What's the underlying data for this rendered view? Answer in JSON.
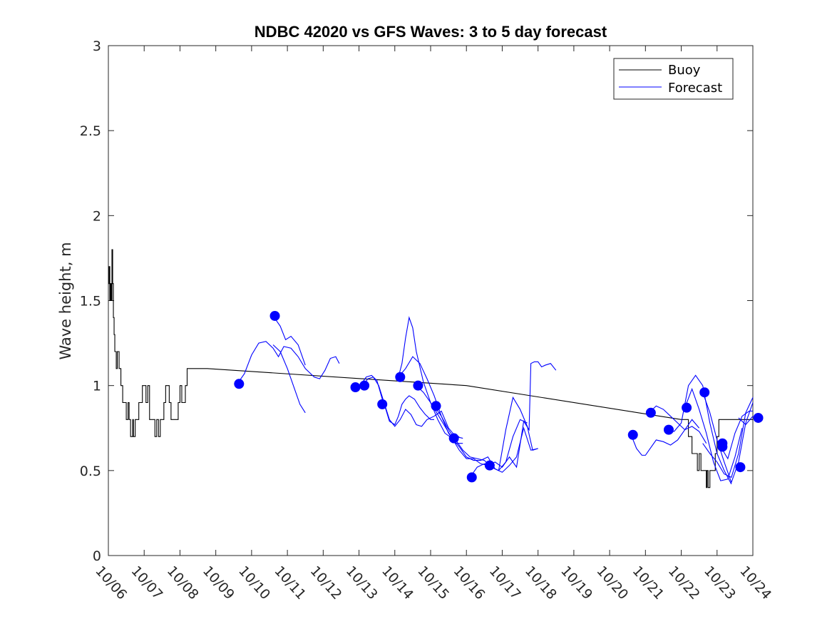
{
  "chart_data": {
    "type": "line",
    "title": "NDBC 42020 vs GFS Waves: 3 to 5 day forecast",
    "xlabel": "",
    "ylabel": "Wave height, m",
    "xlim": [
      0,
      18
    ],
    "ylim": [
      0,
      3
    ],
    "x_ticks": [
      "10/06",
      "10/07",
      "10/08",
      "10/09",
      "10/10",
      "10/11",
      "10/12",
      "10/13",
      "10/14",
      "10/15",
      "10/16",
      "10/17",
      "10/18",
      "10/19",
      "10/20",
      "10/21",
      "10/22",
      "10/23",
      "10/24"
    ],
    "y_ticks": [
      "0",
      "0.5",
      "1",
      "1.5",
      "2",
      "2.5",
      "3"
    ],
    "legend": {
      "position": "top-right",
      "entries": [
        "Buoy",
        "Forecast"
      ]
    },
    "colors": {
      "buoy": "#000000",
      "forecast": "#0000ff"
    },
    "series": [
      {
        "name": "Buoy",
        "x": [
          0,
          0.02,
          0.04,
          0.06,
          0.08,
          0.1,
          0.12,
          0.14,
          0.16,
          0.18,
          0.2,
          0.22,
          0.25,
          0.3,
          0.35,
          0.4,
          0.45,
          0.5,
          0.55,
          0.58,
          0.6,
          0.62,
          0.65,
          0.68,
          0.7,
          0.72,
          0.75,
          0.8,
          0.85,
          0.9,
          0.95,
          1.0,
          1.05,
          1.1,
          1.15,
          1.2,
          1.3,
          1.35,
          1.4,
          1.45,
          1.5,
          1.55,
          1.6,
          1.65,
          1.7,
          1.75,
          1.8,
          1.85,
          1.9,
          1.95,
          2.0,
          2.05,
          2.1,
          2.15,
          2.2,
          2.3,
          2.4,
          2.45,
          2.5,
          2.55,
          2.6,
          2.65,
          2.7,
          2.75,
          2.76,
          10.0,
          16.0,
          16.2,
          16.3,
          16.4,
          16.45,
          16.5,
          16.55,
          16.6,
          16.65,
          16.7,
          16.72,
          16.75,
          16.8,
          16.85,
          16.9,
          16.95,
          17.0,
          17.05,
          17.1,
          17.15,
          17.2,
          17.3,
          17.4,
          17.5,
          17.6,
          17.7,
          17.8,
          17.9,
          18.0
        ],
        "values": [
          1.6,
          1.7,
          1.5,
          1.6,
          1.5,
          1.8,
          1.6,
          1.4,
          1.3,
          1.2,
          1.2,
          1.1,
          1.2,
          1.1,
          1.0,
          0.9,
          0.9,
          0.8,
          0.9,
          0.8,
          0.8,
          0.7,
          0.7,
          0.8,
          0.7,
          0.7,
          0.8,
          0.8,
          0.9,
          0.9,
          1.0,
          1.0,
          0.9,
          1.0,
          0.8,
          0.8,
          0.7,
          0.8,
          0.7,
          0.8,
          0.8,
          0.9,
          1.0,
          1.0,
          0.9,
          0.8,
          0.8,
          0.8,
          0.8,
          0.9,
          1.0,
          0.9,
          0.9,
          1.0,
          1.1,
          1.1,
          1.1,
          1.1,
          1.1,
          1.1,
          1.1,
          1.1,
          1.1,
          1.1,
          1.1,
          1.0,
          0.8,
          0.7,
          0.6,
          0.6,
          0.5,
          0.6,
          0.5,
          0.5,
          0.5,
          0.4,
          0.5,
          0.4,
          0.5,
          0.5,
          0.5,
          0.6,
          0.7,
          0.8,
          0.8,
          0.8,
          0.8,
          0.8,
          0.8,
          0.8,
          0.8,
          0.8,
          0.8,
          0.8,
          0.8
        ]
      },
      {
        "name": "Forecast",
        "lines": [
          {
            "x": [
              3.6,
              3.8,
              4.0,
              4.2,
              4.4,
              4.6,
              4.75,
              4.9,
              5.1,
              5.3,
              5.5,
              5.75,
              5.9,
              6.05,
              6.2,
              6.35,
              6.45
            ],
            "values": [
              1.01,
              1.07,
              1.18,
              1.25,
              1.26,
              1.22,
              1.17,
              1.23,
              1.22,
              1.17,
              1.1,
              1.05,
              1.04,
              1.09,
              1.16,
              1.17,
              1.13
            ]
          },
          {
            "x": [
              4.6,
              4.8,
              4.95,
              5.1,
              5.3,
              5.5
            ],
            "values": [
              1.41,
              1.35,
              1.27,
              1.29,
              1.24,
              1.12
            ]
          },
          {
            "x": [
              4.6,
              4.8,
              5.0,
              5.2,
              5.35,
              5.5
            ],
            "values": [
              1.24,
              1.2,
              1.1,
              0.98,
              0.89,
              0.84
            ]
          },
          {
            "x": [
              6.85,
              7.0,
              7.1,
              7.2,
              7.35,
              7.5,
              7.65,
              7.75,
              7.85,
              8.0,
              8.1,
              8.2,
              8.3,
              8.4,
              8.55,
              8.7,
              8.85,
              9.0,
              9.1
            ],
            "values": [
              0.99,
              1.0,
              1.02,
              1.05,
              1.06,
              1.03,
              0.92,
              0.86,
              0.79,
              0.77,
              0.82,
              0.89,
              0.92,
              0.94,
              0.92,
              0.87,
              0.83,
              0.8,
              0.8
            ]
          },
          {
            "x": [
              7.1,
              7.25,
              7.4,
              7.55,
              7.7,
              7.85,
              8.0,
              8.15,
              8.3,
              8.45,
              8.6,
              8.75,
              8.9,
              9.1,
              9.3,
              9.5,
              9.7,
              9.9
            ],
            "values": [
              1.0,
              1.04,
              1.05,
              1.0,
              0.9,
              0.8,
              0.76,
              0.8,
              0.86,
              0.83,
              0.77,
              0.76,
              0.8,
              0.82,
              0.85,
              0.75,
              0.7,
              0.69
            ]
          },
          {
            "x": [
              8.1,
              8.2,
              8.3,
              8.4,
              8.5,
              8.6,
              8.8,
              9.0,
              9.2,
              9.4,
              9.6,
              9.8
            ],
            "values": [
              1.05,
              1.13,
              1.28,
              1.4,
              1.34,
              1.2,
              1.02,
              0.9,
              0.8,
              0.72,
              0.69,
              0.7
            ]
          },
          {
            "x": [
              8.1,
              8.3,
              8.5,
              8.7,
              8.9,
              9.1,
              9.3,
              9.5,
              9.7,
              9.9
            ],
            "values": [
              1.05,
              1.1,
              1.17,
              1.13,
              1.04,
              0.94,
              0.82,
              0.72,
              0.66,
              0.66
            ]
          },
          {
            "x": [
              8.6,
              8.8,
              9.0,
              9.2,
              9.4,
              9.6,
              9.8,
              10.0,
              10.2,
              10.4,
              10.6
            ],
            "values": [
              1.0,
              0.96,
              0.9,
              0.83,
              0.76,
              0.69,
              0.62,
              0.57,
              0.57,
              0.54,
              0.53
            ]
          },
          {
            "x": [
              9.1,
              9.3,
              9.5,
              9.7,
              9.9,
              10.1,
              10.3,
              10.5,
              10.7,
              10.9,
              11.1,
              11.3,
              11.5,
              11.7
            ],
            "values": [
              0.88,
              0.82,
              0.74,
              0.68,
              0.62,
              0.58,
              0.57,
              0.56,
              0.52,
              0.5,
              0.55,
              0.7,
              0.8,
              0.78
            ]
          },
          {
            "x": [
              9.6,
              9.8,
              10.0,
              10.2,
              10.4,
              10.6,
              10.8,
              11.0,
              11.2,
              11.4,
              11.6,
              11.8,
              12.0
            ],
            "values": [
              0.69,
              0.64,
              0.58,
              0.56,
              0.56,
              0.58,
              0.51,
              0.49,
              0.53,
              0.58,
              0.75,
              0.62,
              0.63
            ]
          },
          {
            "x": [
              10.1,
              10.3,
              10.5,
              10.7,
              10.9,
              11.1,
              11.3,
              11.5,
              11.7,
              11.85,
              12.0
            ],
            "values": [
              0.46,
              0.52,
              0.54,
              0.52,
              0.5,
              0.74,
              0.93,
              0.86,
              0.76,
              0.62,
              0.63
            ]
          },
          {
            "x": [
              10.6,
              10.8,
              11.0,
              11.2,
              11.4,
              11.6,
              11.75,
              11.8,
              11.9,
              12.0,
              12.1,
              12.2,
              12.35,
              12.5
            ],
            "values": [
              0.53,
              0.55,
              0.52,
              0.58,
              0.52,
              0.79,
              0.74,
              1.13,
              1.14,
              1.14,
              1.11,
              1.12,
              1.13,
              1.09
            ]
          },
          {
            "x": [
              14.6,
              14.75,
              14.9,
              15.0,
              15.1,
              15.3,
              15.5,
              15.7,
              15.9,
              16.1,
              16.3,
              16.5
            ],
            "values": [
              0.71,
              0.63,
              0.59,
              0.59,
              0.62,
              0.68,
              0.67,
              0.65,
              0.68,
              0.74,
              0.8,
              0.75
            ]
          },
          {
            "x": [
              15.1,
              15.3,
              15.5,
              15.7,
              15.9,
              16.1,
              16.3,
              16.5,
              16.7
            ],
            "values": [
              0.84,
              0.88,
              0.86,
              0.82,
              0.78,
              0.74,
              0.76,
              0.73,
              0.66
            ]
          },
          {
            "x": [
              15.6,
              15.8,
              16.0,
              16.2,
              16.4,
              16.6,
              16.8,
              17.0,
              17.2,
              17.4
            ],
            "values": [
              0.74,
              0.73,
              0.78,
              1.0,
              1.06,
              1.0,
              0.78,
              0.6,
              0.5,
              0.42
            ]
          },
          {
            "x": [
              16.1,
              16.3,
              16.5,
              16.7,
              16.9,
              17.1,
              17.3,
              17.5,
              17.7
            ],
            "values": [
              0.87,
              0.98,
              0.86,
              0.72,
              0.55,
              0.44,
              0.45,
              0.58,
              0.75
            ]
          },
          {
            "x": [
              16.6,
              16.8,
              17.0,
              17.2,
              17.4,
              17.6,
              17.8,
              18.0
            ],
            "values": [
              0.96,
              0.84,
              0.68,
              0.55,
              0.43,
              0.55,
              0.78,
              0.9
            ]
          },
          {
            "x": [
              17.1,
              17.3,
              17.5,
              17.7,
              17.9,
              18.0
            ],
            "values": [
              0.64,
              0.57,
              0.72,
              0.82,
              0.85,
              0.85
            ]
          },
          {
            "x": [
              17.6,
              17.8,
              18.0
            ],
            "values": [
              0.81,
              0.77,
              0.82
            ]
          },
          {
            "x": [
              16.6,
              16.8,
              17.0,
              17.2,
              17.4,
              17.6,
              17.8,
              18.0
            ],
            "values": [
              0.66,
              0.6,
              0.55,
              0.48,
              0.46,
              0.6,
              0.84,
              0.93
            ]
          }
        ],
        "markers": {
          "x": [
            3.65,
            4.65,
            6.9,
            7.15,
            7.65,
            8.15,
            8.65,
            9.15,
            9.65,
            10.15,
            10.65,
            14.65,
            15.15,
            15.65,
            16.15,
            16.65,
            17.15,
            17.65,
            17.15,
            18.15
          ],
          "values": [
            1.01,
            1.41,
            0.99,
            1.0,
            0.89,
            1.05,
            1.0,
            0.88,
            0.69,
            0.46,
            0.53,
            0.71,
            0.84,
            0.74,
            0.87,
            0.96,
            0.66,
            0.52,
            0.64,
            0.81
          ]
        }
      }
    ]
  }
}
